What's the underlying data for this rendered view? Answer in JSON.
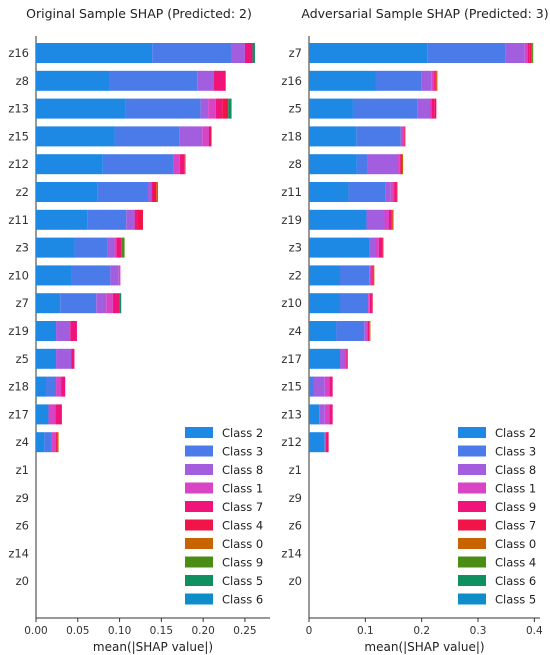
{
  "chart_data": [
    {
      "type": "bar",
      "stacked": true,
      "orientation": "horizontal",
      "title": "Original Sample SHAP (Predicted: 2)",
      "xlabel": "mean(|SHAP value|)",
      "xlim": [
        0,
        0.28
      ],
      "xticks": [
        "0.00",
        "0.05",
        "0.10",
        "0.15",
        "0.20",
        "0.25"
      ],
      "categories": [
        "z16",
        "z8",
        "z13",
        "z15",
        "z12",
        "z2",
        "z11",
        "z3",
        "z10",
        "z7",
        "z19",
        "z5",
        "z18",
        "z17",
        "z4",
        "z1",
        "z9",
        "z6",
        "z14",
        "z0"
      ],
      "legend_position": "lower-right",
      "series": [
        {
          "name": "Class 2",
          "color": "#1e88e5",
          "values": [
            0.139,
            0.088,
            0.107,
            0.094,
            0.08,
            0.074,
            0.062,
            0.046,
            0.043,
            0.029,
            0.024,
            0.024,
            0.012,
            0.015,
            0.01,
            0,
            0,
            0,
            0,
            0
          ]
        },
        {
          "name": "Class 3",
          "color": "#4a7be8",
          "values": [
            0.095,
            0.105,
            0.09,
            0.078,
            0.084,
            0.06,
            0.046,
            0.04,
            0.046,
            0.043,
            0.0,
            0.0,
            0.012,
            0.0,
            0.008,
            0,
            0,
            0,
            0,
            0
          ]
        },
        {
          "name": "Class 8",
          "color": "#a35ee0",
          "values": [
            0.016,
            0.02,
            0.009,
            0.027,
            0.0,
            0.004,
            0.01,
            0.008,
            0.01,
            0.012,
            0.017,
            0.018,
            0.0,
            0.0,
            0.0,
            0,
            0,
            0,
            0,
            0
          ]
        },
        {
          "name": "Class 1",
          "color": "#d944c5",
          "values": [
            0.0,
            0.0,
            0.009,
            0.008,
            0.008,
            0.0,
            0.0,
            0.002,
            0.002,
            0.008,
            0.0,
            0.0,
            0.006,
            0.008,
            0.006,
            0,
            0,
            0,
            0,
            0
          ]
        },
        {
          "name": "Class 7",
          "color": "#f0147a",
          "values": [
            0.009,
            0.014,
            0.008,
            0.0,
            0.006,
            0.002,
            0.004,
            0.006,
            0.0,
            0.008,
            0.008,
            0.004,
            0.005,
            0.008,
            0.0,
            0,
            0,
            0,
            0,
            0
          ]
        },
        {
          "name": "Class 4",
          "color": "#f01448",
          "values": [
            0.0,
            0.0,
            0.007,
            0.003,
            0.0,
            0.004,
            0.006,
            0.0,
            0.0,
            0.0,
            0.0,
            0.0,
            0.0,
            0.0,
            0.002,
            0,
            0,
            0,
            0,
            0
          ]
        },
        {
          "name": "Class 0",
          "color": "#c86400",
          "values": [
            0.0,
            0.0,
            0.0,
            0.0,
            0.001,
            0.002,
            0.0,
            0.0,
            0.0,
            0.0,
            0.0,
            0.0,
            0.0,
            0.0,
            0.001,
            0,
            0,
            0,
            0,
            0
          ]
        },
        {
          "name": "Class 9",
          "color": "#4a8c14",
          "values": [
            0.0,
            0.0,
            0.0,
            0.0,
            0.0,
            0.0,
            0.0,
            0.004,
            0.0,
            0.0,
            0.0,
            0.0,
            0.0,
            0.0,
            0.0,
            0,
            0,
            0,
            0,
            0
          ]
        },
        {
          "name": "Class 5",
          "color": "#109060",
          "values": [
            0.003,
            0.0,
            0.004,
            0.0,
            0.0,
            0.0,
            0.0,
            0.0,
            0.0,
            0.002,
            0.0,
            0.0,
            0.0,
            0.0,
            0.0,
            0,
            0,
            0,
            0,
            0
          ]
        },
        {
          "name": "Class 6",
          "color": "#0e8ec8",
          "values": [
            0,
            0,
            0,
            0,
            0,
            0,
            0,
            0,
            0,
            0,
            0,
            0,
            0,
            0,
            0,
            0,
            0,
            0,
            0,
            0
          ]
        }
      ]
    },
    {
      "type": "bar",
      "stacked": true,
      "orientation": "horizontal",
      "title": "Adversarial Sample SHAP (Predicted: 3)",
      "xlabel": "mean(|SHAP value|)",
      "xlim": [
        0,
        0.41
      ],
      "xticks": [
        "0",
        "0.1",
        "0.2",
        "0.3",
        "0.4"
      ],
      "categories": [
        "z7",
        "z16",
        "z5",
        "z18",
        "z8",
        "z11",
        "z19",
        "z3",
        "z2",
        "z10",
        "z4",
        "z17",
        "z15",
        "z13",
        "z12",
        "z1",
        "z9",
        "z6",
        "z14",
        "z0"
      ],
      "legend_position": "lower-right",
      "series": [
        {
          "name": "Class 2",
          "color": "#1e88e5",
          "values": [
            0.21,
            0.118,
            0.078,
            0.084,
            0.085,
            0.07,
            0.102,
            0.108,
            0.055,
            0.055,
            0.048,
            0.055,
            0.0,
            0.018,
            0.028,
            0,
            0,
            0,
            0,
            0
          ]
        },
        {
          "name": "Class 3",
          "color": "#4a7be8",
          "values": [
            0.138,
            0.082,
            0.115,
            0.079,
            0.018,
            0.065,
            0.0,
            0.0,
            0.052,
            0.05,
            0.05,
            0.0,
            0.008,
            0.0,
            0.0,
            0,
            0,
            0,
            0,
            0
          ]
        },
        {
          "name": "Class 8",
          "color": "#a35ee0",
          "values": [
            0.035,
            0.018,
            0.02,
            0.0,
            0.055,
            0.01,
            0.032,
            0.01,
            0.0,
            0.0,
            0.004,
            0.008,
            0.02,
            0.01,
            0.0,
            0,
            0,
            0,
            0,
            0
          ]
        },
        {
          "name": "Class 1",
          "color": "#d944c5",
          "values": [
            0.005,
            0.004,
            0.004,
            0.006,
            0.003,
            0.006,
            0.008,
            0.006,
            0.004,
            0.003,
            0.002,
            0.003,
            0.008,
            0.008,
            0.002,
            0,
            0,
            0,
            0,
            0
          ]
        },
        {
          "name": "Class 9",
          "color": "#f0147a",
          "values": [
            0.004,
            0.002,
            0.006,
            0.0,
            0.002,
            0.004,
            0.004,
            0.006,
            0.002,
            0.003,
            0.003,
            0.002,
            0.006,
            0.006,
            0.004,
            0,
            0,
            0,
            0,
            0
          ]
        },
        {
          "name": "Class 7",
          "color": "#f01448",
          "values": [
            0.002,
            0.002,
            0.003,
            0.002,
            0.002,
            0.002,
            0.002,
            0.002,
            0.002,
            0.002,
            0.001,
            0.001,
            0.0,
            0.0,
            0.001,
            0,
            0,
            0,
            0,
            0
          ]
        },
        {
          "name": "Class 0",
          "color": "#c86400",
          "values": [
            0.002,
            0.002,
            0.0,
            0.0,
            0.002,
            0.0,
            0.002,
            0.0,
            0.001,
            0.0,
            0.001,
            0.0,
            0.0,
            0.0,
            0.0,
            0,
            0,
            0,
            0,
            0
          ]
        },
        {
          "name": "Class 4",
          "color": "#4a8c14",
          "values": [
            0.002,
            0.0,
            0.0,
            0.0,
            0.0,
            0.0,
            0.0,
            0.0,
            0.0,
            0.0,
            0.0,
            0.0,
            0.0,
            0.0,
            0.0,
            0,
            0,
            0,
            0,
            0
          ]
        },
        {
          "name": "Class 6",
          "color": "#109060",
          "values": [
            0.0,
            0.0,
            0.0,
            0.0,
            0.0,
            0.0,
            0.0,
            0.0,
            0.0,
            0.0,
            0.0,
            0.0,
            0.0,
            0.0,
            0.0,
            0,
            0,
            0,
            0,
            0
          ]
        },
        {
          "name": "Class 5",
          "color": "#0e8ec8",
          "values": [
            0,
            0,
            0,
            0,
            0,
            0,
            0,
            0,
            0,
            0,
            0,
            0,
            0,
            0,
            0,
            0,
            0,
            0,
            0,
            0
          ]
        }
      ]
    }
  ]
}
